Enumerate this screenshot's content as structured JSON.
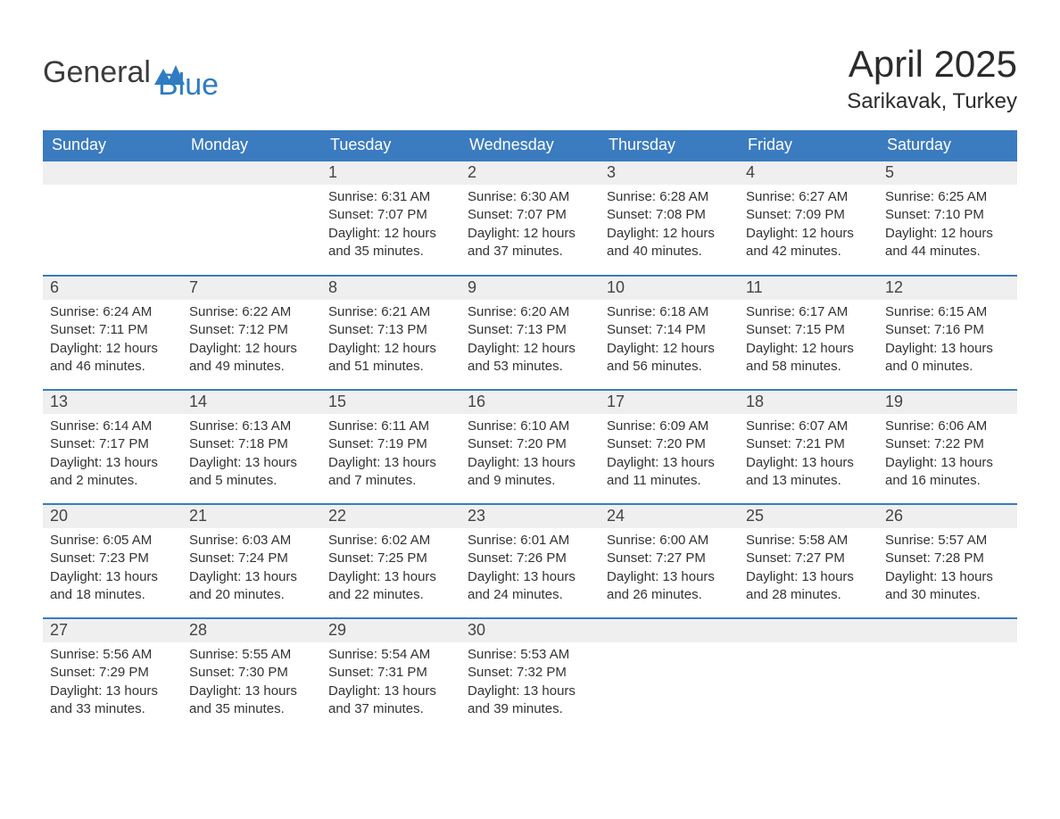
{
  "brand": {
    "general": "General",
    "blue": "Blue"
  },
  "title": "April 2025",
  "location": "Sarikavak, Turkey",
  "colors": {
    "header_bg": "#3b7bbf",
    "header_text": "#ffffff",
    "row_divider": "#3b7bbf",
    "daynum_bg": "#efefef",
    "body_text": "#333333",
    "brand_blue": "#2f7cc3",
    "page_bg": "#ffffff"
  },
  "columns": [
    "Sunday",
    "Monday",
    "Tuesday",
    "Wednesday",
    "Thursday",
    "Friday",
    "Saturday"
  ],
  "weeks": [
    [
      null,
      null,
      {
        "d": "1",
        "sr": "Sunrise: 6:31 AM",
        "ss": "Sunset: 7:07 PM",
        "dl1": "Daylight: 12 hours",
        "dl2": "and 35 minutes."
      },
      {
        "d": "2",
        "sr": "Sunrise: 6:30 AM",
        "ss": "Sunset: 7:07 PM",
        "dl1": "Daylight: 12 hours",
        "dl2": "and 37 minutes."
      },
      {
        "d": "3",
        "sr": "Sunrise: 6:28 AM",
        "ss": "Sunset: 7:08 PM",
        "dl1": "Daylight: 12 hours",
        "dl2": "and 40 minutes."
      },
      {
        "d": "4",
        "sr": "Sunrise: 6:27 AM",
        "ss": "Sunset: 7:09 PM",
        "dl1": "Daylight: 12 hours",
        "dl2": "and 42 minutes."
      },
      {
        "d": "5",
        "sr": "Sunrise: 6:25 AM",
        "ss": "Sunset: 7:10 PM",
        "dl1": "Daylight: 12 hours",
        "dl2": "and 44 minutes."
      }
    ],
    [
      {
        "d": "6",
        "sr": "Sunrise: 6:24 AM",
        "ss": "Sunset: 7:11 PM",
        "dl1": "Daylight: 12 hours",
        "dl2": "and 46 minutes."
      },
      {
        "d": "7",
        "sr": "Sunrise: 6:22 AM",
        "ss": "Sunset: 7:12 PM",
        "dl1": "Daylight: 12 hours",
        "dl2": "and 49 minutes."
      },
      {
        "d": "8",
        "sr": "Sunrise: 6:21 AM",
        "ss": "Sunset: 7:13 PM",
        "dl1": "Daylight: 12 hours",
        "dl2": "and 51 minutes."
      },
      {
        "d": "9",
        "sr": "Sunrise: 6:20 AM",
        "ss": "Sunset: 7:13 PM",
        "dl1": "Daylight: 12 hours",
        "dl2": "and 53 minutes."
      },
      {
        "d": "10",
        "sr": "Sunrise: 6:18 AM",
        "ss": "Sunset: 7:14 PM",
        "dl1": "Daylight: 12 hours",
        "dl2": "and 56 minutes."
      },
      {
        "d": "11",
        "sr": "Sunrise: 6:17 AM",
        "ss": "Sunset: 7:15 PM",
        "dl1": "Daylight: 12 hours",
        "dl2": "and 58 minutes."
      },
      {
        "d": "12",
        "sr": "Sunrise: 6:15 AM",
        "ss": "Sunset: 7:16 PM",
        "dl1": "Daylight: 13 hours",
        "dl2": "and 0 minutes."
      }
    ],
    [
      {
        "d": "13",
        "sr": "Sunrise: 6:14 AM",
        "ss": "Sunset: 7:17 PM",
        "dl1": "Daylight: 13 hours",
        "dl2": "and 2 minutes."
      },
      {
        "d": "14",
        "sr": "Sunrise: 6:13 AM",
        "ss": "Sunset: 7:18 PM",
        "dl1": "Daylight: 13 hours",
        "dl2": "and 5 minutes."
      },
      {
        "d": "15",
        "sr": "Sunrise: 6:11 AM",
        "ss": "Sunset: 7:19 PM",
        "dl1": "Daylight: 13 hours",
        "dl2": "and 7 minutes."
      },
      {
        "d": "16",
        "sr": "Sunrise: 6:10 AM",
        "ss": "Sunset: 7:20 PM",
        "dl1": "Daylight: 13 hours",
        "dl2": "and 9 minutes."
      },
      {
        "d": "17",
        "sr": "Sunrise: 6:09 AM",
        "ss": "Sunset: 7:20 PM",
        "dl1": "Daylight: 13 hours",
        "dl2": "and 11 minutes."
      },
      {
        "d": "18",
        "sr": "Sunrise: 6:07 AM",
        "ss": "Sunset: 7:21 PM",
        "dl1": "Daylight: 13 hours",
        "dl2": "and 13 minutes."
      },
      {
        "d": "19",
        "sr": "Sunrise: 6:06 AM",
        "ss": "Sunset: 7:22 PM",
        "dl1": "Daylight: 13 hours",
        "dl2": "and 16 minutes."
      }
    ],
    [
      {
        "d": "20",
        "sr": "Sunrise: 6:05 AM",
        "ss": "Sunset: 7:23 PM",
        "dl1": "Daylight: 13 hours",
        "dl2": "and 18 minutes."
      },
      {
        "d": "21",
        "sr": "Sunrise: 6:03 AM",
        "ss": "Sunset: 7:24 PM",
        "dl1": "Daylight: 13 hours",
        "dl2": "and 20 minutes."
      },
      {
        "d": "22",
        "sr": "Sunrise: 6:02 AM",
        "ss": "Sunset: 7:25 PM",
        "dl1": "Daylight: 13 hours",
        "dl2": "and 22 minutes."
      },
      {
        "d": "23",
        "sr": "Sunrise: 6:01 AM",
        "ss": "Sunset: 7:26 PM",
        "dl1": "Daylight: 13 hours",
        "dl2": "and 24 minutes."
      },
      {
        "d": "24",
        "sr": "Sunrise: 6:00 AM",
        "ss": "Sunset: 7:27 PM",
        "dl1": "Daylight: 13 hours",
        "dl2": "and 26 minutes."
      },
      {
        "d": "25",
        "sr": "Sunrise: 5:58 AM",
        "ss": "Sunset: 7:27 PM",
        "dl1": "Daylight: 13 hours",
        "dl2": "and 28 minutes."
      },
      {
        "d": "26",
        "sr": "Sunrise: 5:57 AM",
        "ss": "Sunset: 7:28 PM",
        "dl1": "Daylight: 13 hours",
        "dl2": "and 30 minutes."
      }
    ],
    [
      {
        "d": "27",
        "sr": "Sunrise: 5:56 AM",
        "ss": "Sunset: 7:29 PM",
        "dl1": "Daylight: 13 hours",
        "dl2": "and 33 minutes."
      },
      {
        "d": "28",
        "sr": "Sunrise: 5:55 AM",
        "ss": "Sunset: 7:30 PM",
        "dl1": "Daylight: 13 hours",
        "dl2": "and 35 minutes."
      },
      {
        "d": "29",
        "sr": "Sunrise: 5:54 AM",
        "ss": "Sunset: 7:31 PM",
        "dl1": "Daylight: 13 hours",
        "dl2": "and 37 minutes."
      },
      {
        "d": "30",
        "sr": "Sunrise: 5:53 AM",
        "ss": "Sunset: 7:32 PM",
        "dl1": "Daylight: 13 hours",
        "dl2": "and 39 minutes."
      },
      null,
      null,
      null
    ]
  ]
}
